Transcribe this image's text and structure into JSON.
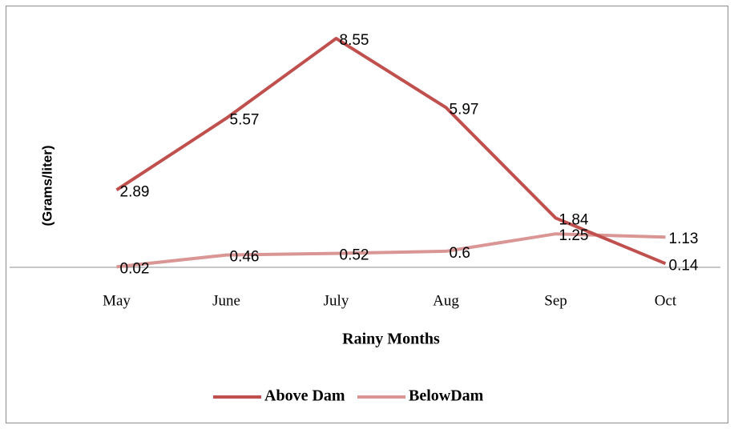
{
  "chart_data": {
    "type": "line",
    "xlabel": "Rainy Months",
    "ylabel": "(Grams/liter)",
    "categories": [
      "May",
      "June",
      "July",
      "Aug",
      "Sep",
      "Oct"
    ],
    "series": [
      {
        "name": "Above Dam",
        "color": "#c0504d",
        "values": [
          2.89,
          5.57,
          8.55,
          5.97,
          1.84,
          0.14
        ]
      },
      {
        "name": "BelowDam",
        "color": "#d99694",
        "values": [
          0.02,
          0.46,
          0.52,
          0.6,
          1.25,
          1.13
        ]
      }
    ],
    "ylim": [
      0,
      9
    ],
    "legend": "bottom"
  }
}
